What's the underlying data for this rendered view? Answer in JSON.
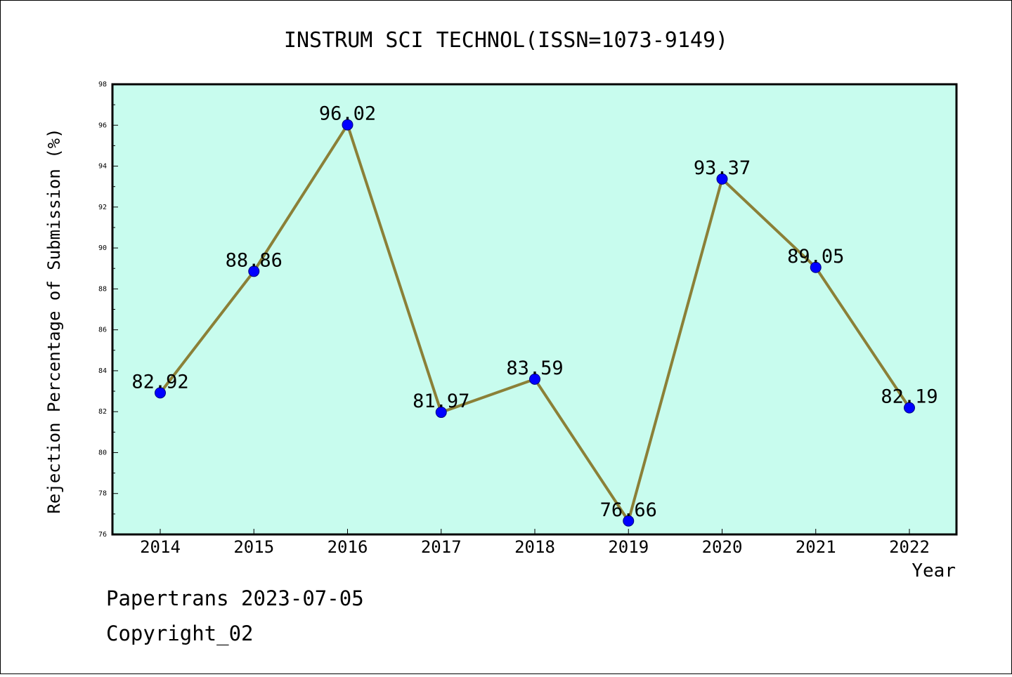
{
  "chart_data": {
    "type": "line",
    "title": "INSTRUM SCI TECHNOL(ISSN=1073-9149)",
    "xlabel": "Year",
    "ylabel": "Rejection Percentage of Submission (%)",
    "categories": [
      "2014",
      "2015",
      "2016",
      "2017",
      "2018",
      "2019",
      "2020",
      "2021",
      "2022"
    ],
    "series": [
      {
        "values": [
          82.92,
          88.86,
          96.02,
          81.97,
          83.59,
          76.66,
          93.37,
          89.05,
          82.19
        ],
        "labels": [
          "82.92",
          "88.86",
          "96.02",
          "81.97",
          "83.59",
          "76.66",
          "93.37",
          "89.05",
          "82.19"
        ]
      }
    ],
    "ylim": [
      76,
      98
    ],
    "yticks": [
      76,
      78,
      80,
      82,
      84,
      86,
      88,
      90,
      92,
      94,
      96,
      98
    ],
    "grid": false,
    "plot_background": "#c8fcee",
    "line_color": "#8b8037",
    "marker_color": "#0000ff"
  },
  "footer": {
    "line1": "Papertrans 2023-07-05",
    "line2": "Copyright_02"
  }
}
